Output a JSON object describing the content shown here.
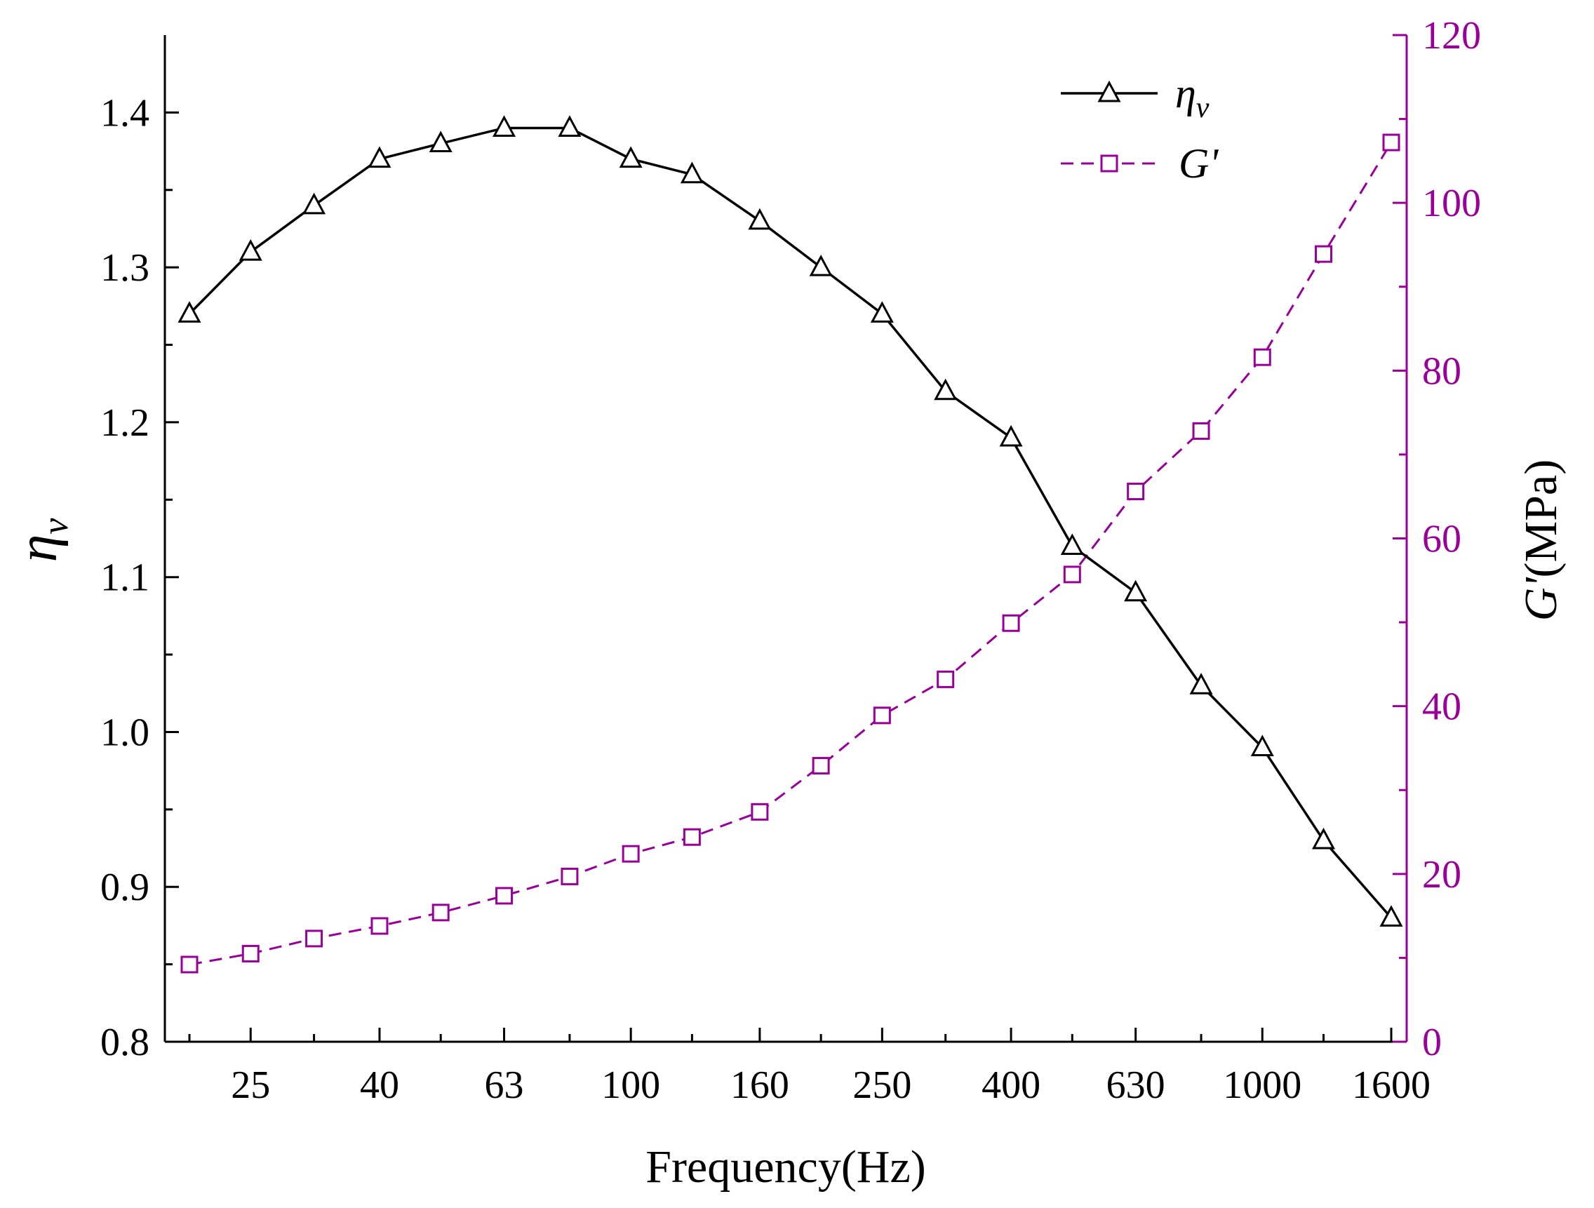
{
  "chart_data": {
    "type": "line",
    "title": "",
    "xlabel": "Frequency(Hz)",
    "ylabel_left_symbol": "η",
    "ylabel_left_subscript": "v",
    "ylabel_right_symbol": "G'",
    "ylabel_right_unit": "(MPa)",
    "x_scale": "log",
    "categories": [
      "20",
      "25",
      "31.5",
      "40",
      "50",
      "63",
      "80",
      "100",
      "125",
      "160",
      "200",
      "250",
      "315",
      "400",
      "500",
      "630",
      "800",
      "1000",
      "1250",
      "1600"
    ],
    "x_tick_labels": [
      "25",
      "40",
      "63",
      "100",
      "160",
      "250",
      "400",
      "630",
      "1000",
      "1600"
    ],
    "y_left": {
      "range": [
        0.8,
        1.45
      ],
      "ticks": [
        0.8,
        0.9,
        1.0,
        1.1,
        1.2,
        1.3,
        1.4
      ],
      "tick_labels": [
        "0.8",
        "0.9",
        "1.0",
        "1.1",
        "1.2",
        "1.3",
        "1.4"
      ]
    },
    "y_right": {
      "range": [
        0,
        120
      ],
      "ticks": [
        0,
        20,
        40,
        60,
        80,
        100,
        120
      ],
      "tick_labels": [
        "0",
        "20",
        "40",
        "60",
        "80",
        "100",
        "120"
      ]
    },
    "series": [
      {
        "name": "η_v",
        "legend_symbol": "η",
        "legend_subscript": "v",
        "axis": "left",
        "marker": "triangle",
        "line_style": "solid",
        "color": "#000000",
        "values": [
          1.27,
          1.31,
          1.34,
          1.37,
          1.38,
          1.39,
          1.39,
          1.37,
          1.36,
          1.33,
          1.3,
          1.27,
          1.22,
          1.19,
          1.12,
          1.09,
          1.03,
          0.99,
          0.93,
          0.88
        ]
      },
      {
        "name": "G'",
        "legend_symbol": "G'",
        "legend_subscript": "",
        "axis": "right",
        "marker": "square",
        "line_style": "dashed",
        "color": "#990099",
        "values": [
          9.2,
          10.5,
          12.3,
          13.8,
          15.4,
          17.4,
          19.7,
          22.4,
          24.4,
          27.4,
          32.9,
          38.9,
          43.2,
          49.9,
          55.7,
          65.6,
          72.8,
          81.6,
          93.9,
          107.2
        ]
      }
    ],
    "legend_position": "top-right",
    "grid": false
  }
}
